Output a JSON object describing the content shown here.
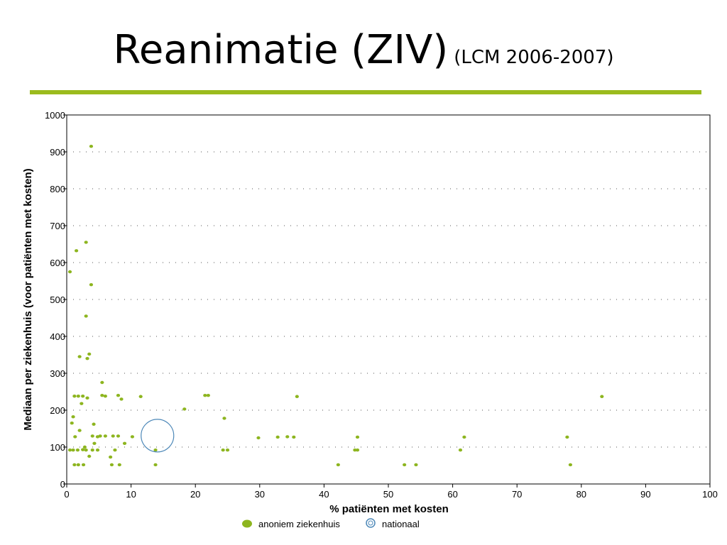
{
  "slide": {
    "title": "Reanimatie (ZIV)",
    "subtitle": "(LCM 2006-2007)"
  },
  "colors": {
    "accent": "#9bbb1d",
    "point": "#8db51f",
    "national": "#4d88b8",
    "grid": "#555555"
  },
  "chart_data": {
    "type": "scatter",
    "xlabel": "% patiënten met kosten",
    "ylabel": "Mediaan per ziekenhuis (voor patiënten met kosten)",
    "xlim": [
      0,
      100
    ],
    "ylim": [
      0,
      1000
    ],
    "x_ticks": [
      0,
      10,
      20,
      30,
      40,
      50,
      60,
      70,
      80,
      90,
      100
    ],
    "y_ticks": [
      0,
      100,
      200,
      300,
      400,
      500,
      600,
      700,
      800,
      900,
      1000
    ],
    "grid": "horizontal dotted",
    "legend": "bottom-center",
    "legend_entries": [
      "anoniem ziekenhuis",
      "nationaal"
    ],
    "series": [
      {
        "name": "anoniem ziekenhuis",
        "marker": "dot",
        "points": [
          [
            3.8,
            915
          ],
          [
            3,
            655
          ],
          [
            1.5,
            632
          ],
          [
            0.5,
            575
          ],
          [
            3.8,
            540
          ],
          [
            3,
            455
          ],
          [
            3.5,
            352
          ],
          [
            2,
            345
          ],
          [
            3.2,
            340
          ],
          [
            5.5,
            275
          ],
          [
            1.2,
            238
          ],
          [
            1.8,
            238
          ],
          [
            2.5,
            238
          ],
          [
            3.2,
            233
          ],
          [
            5.5,
            240
          ],
          [
            6,
            238
          ],
          [
            8,
            240
          ],
          [
            11.5,
            237
          ],
          [
            21.5,
            240
          ],
          [
            22,
            240
          ],
          [
            35.8,
            237
          ],
          [
            83.2,
            237
          ],
          [
            1,
            182
          ],
          [
            2.3,
            218
          ],
          [
            8.5,
            230
          ],
          [
            18.3,
            203
          ],
          [
            24.5,
            178
          ],
          [
            4.2,
            162
          ],
          [
            2,
            145
          ],
          [
            0.8,
            165
          ],
          [
            1.3,
            128
          ],
          [
            4,
            130
          ],
          [
            4.8,
            128
          ],
          [
            5.2,
            130
          ],
          [
            6,
            130
          ],
          [
            7.2,
            130
          ],
          [
            8,
            130
          ],
          [
            10.2,
            128
          ],
          [
            29.8,
            125
          ],
          [
            32.8,
            127
          ],
          [
            34.3,
            128
          ],
          [
            35.3,
            127
          ],
          [
            45.2,
            127
          ],
          [
            61.8,
            127
          ],
          [
            77.8,
            127
          ],
          [
            4.3,
            110
          ],
          [
            9,
            110
          ],
          [
            0.5,
            92
          ],
          [
            1,
            92
          ],
          [
            1.7,
            92
          ],
          [
            2.5,
            93
          ],
          [
            3,
            92
          ],
          [
            4,
            92
          ],
          [
            4.8,
            92
          ],
          [
            7.5,
            92
          ],
          [
            13.8,
            92
          ],
          [
            24.3,
            92
          ],
          [
            25,
            92
          ],
          [
            44.8,
            92
          ],
          [
            45.2,
            92
          ],
          [
            61.2,
            92
          ],
          [
            2.8,
            100
          ],
          [
            3.5,
            75
          ],
          [
            6.8,
            73
          ],
          [
            1.2,
            52
          ],
          [
            1.8,
            52
          ],
          [
            2.6,
            52
          ],
          [
            7,
            52
          ],
          [
            8.2,
            52
          ],
          [
            13.8,
            52
          ],
          [
            42.2,
            52
          ],
          [
            52.5,
            52
          ],
          [
            54.3,
            52
          ],
          [
            78.3,
            52
          ]
        ]
      },
      {
        "name": "nationaal",
        "marker": "bubble",
        "points": [
          [
            14.1,
            131
          ]
        ]
      }
    ]
  }
}
